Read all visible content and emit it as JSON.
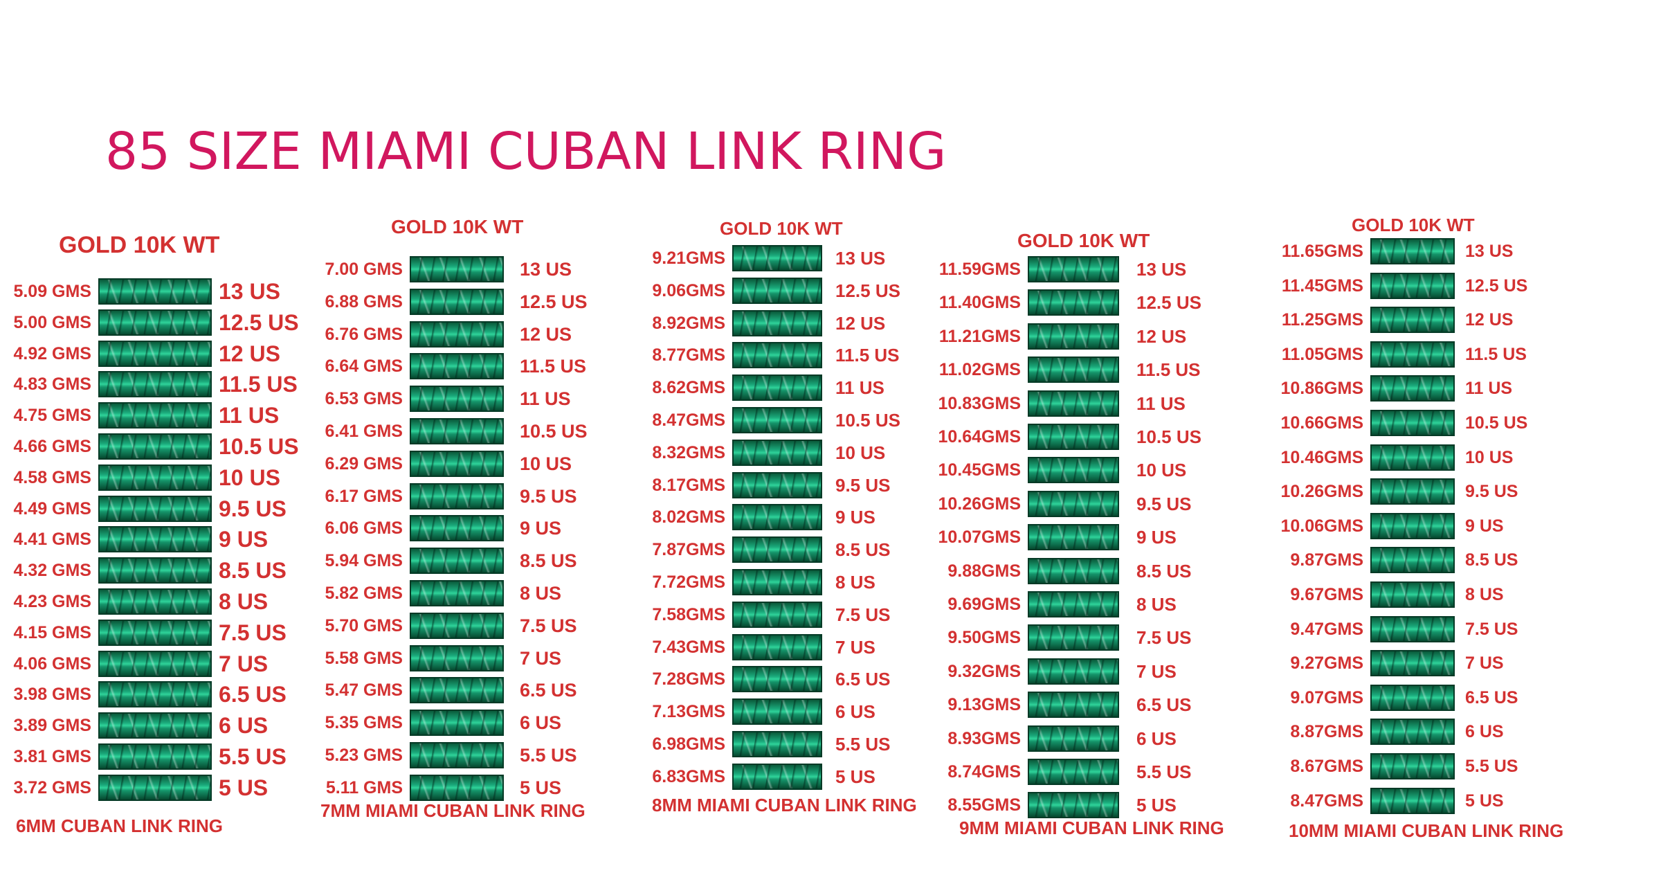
{
  "title": "85 SIZE MIAMI CUBAN LINK RING",
  "colors": {
    "title": "#d1175e",
    "text": "#d33131",
    "ring_green": "#1aa87a"
  },
  "columns": [
    {
      "header": "GOLD 10K WT",
      "footer": "6MM CUBAN LINK RING",
      "rows": [
        {
          "weight": "5.09 GMS",
          "size": "13 US"
        },
        {
          "weight": "5.00 GMS",
          "size": "12.5 US"
        },
        {
          "weight": "4.92 GMS",
          "size": "12 US"
        },
        {
          "weight": "4.83 GMS",
          "size": "11.5 US"
        },
        {
          "weight": "4.75 GMS",
          "size": "11 US"
        },
        {
          "weight": "4.66 GMS",
          "size": "10.5 US"
        },
        {
          "weight": "4.58 GMS",
          "size": "10 US"
        },
        {
          "weight": "4.49 GMS",
          "size": "9.5 US"
        },
        {
          "weight": "4.41 GMS",
          "size": "9 US"
        },
        {
          "weight": "4.32 GMS",
          "size": "8.5 US"
        },
        {
          "weight": "4.23 GMS",
          "size": "8 US"
        },
        {
          "weight": "4.15 GMS",
          "size": "7.5 US"
        },
        {
          "weight": "4.06 GMS",
          "size": "7 US"
        },
        {
          "weight": "3.98 GMS",
          "size": "6.5 US"
        },
        {
          "weight": "3.89 GMS",
          "size": "6 US"
        },
        {
          "weight": "3.81 GMS",
          "size": "5.5 US"
        },
        {
          "weight": "3.72 GMS",
          "size": "5 US"
        }
      ]
    },
    {
      "header": "GOLD 10K WT",
      "footer": "7MM MIAMI CUBAN LINK RING",
      "rows": [
        {
          "weight": "7.00 GMS",
          "size": "13 US"
        },
        {
          "weight": "6.88 GMS",
          "size": "12.5 US"
        },
        {
          "weight": "6.76 GMS",
          "size": "12 US"
        },
        {
          "weight": "6.64 GMS",
          "size": "11.5 US"
        },
        {
          "weight": "6.53 GMS",
          "size": "11 US"
        },
        {
          "weight": "6.41 GMS",
          "size": "10.5 US"
        },
        {
          "weight": "6.29 GMS",
          "size": "10 US"
        },
        {
          "weight": "6.17 GMS",
          "size": "9.5 US"
        },
        {
          "weight": "6.06 GMS",
          "size": "9 US"
        },
        {
          "weight": "5.94 GMS",
          "size": "8.5 US"
        },
        {
          "weight": "5.82 GMS",
          "size": "8 US"
        },
        {
          "weight": "5.70 GMS",
          "size": "7.5 US"
        },
        {
          "weight": "5.58 GMS",
          "size": "7 US"
        },
        {
          "weight": "5.47 GMS",
          "size": "6.5 US"
        },
        {
          "weight": "5.35 GMS",
          "size": "6 US"
        },
        {
          "weight": "5.23 GMS",
          "size": "5.5 US"
        },
        {
          "weight": "5.11 GMS",
          "size": "5 US"
        }
      ]
    },
    {
      "header": "GOLD 10K WT",
      "footer": "8MM MIAMI CUBAN LINK RING",
      "rows": [
        {
          "weight": "9.21GMS",
          "size": "13 US"
        },
        {
          "weight": "9.06GMS",
          "size": "12.5 US"
        },
        {
          "weight": "8.92GMS",
          "size": "12 US"
        },
        {
          "weight": "8.77GMS",
          "size": "11.5 US"
        },
        {
          "weight": "8.62GMS",
          "size": "11 US"
        },
        {
          "weight": "8.47GMS",
          "size": "10.5 US"
        },
        {
          "weight": "8.32GMS",
          "size": "10 US"
        },
        {
          "weight": "8.17GMS",
          "size": "9.5 US"
        },
        {
          "weight": "8.02GMS",
          "size": "9 US"
        },
        {
          "weight": "7.87GMS",
          "size": "8.5 US"
        },
        {
          "weight": "7.72GMS",
          "size": "8 US"
        },
        {
          "weight": "7.58GMS",
          "size": "7.5 US"
        },
        {
          "weight": "7.43GMS",
          "size": "7 US"
        },
        {
          "weight": "7.28GMS",
          "size": "6.5 US"
        },
        {
          "weight": "7.13GMS",
          "size": "6 US"
        },
        {
          "weight": "6.98GMS",
          "size": "5.5 US"
        },
        {
          "weight": "6.83GMS",
          "size": "5 US"
        }
      ]
    },
    {
      "header": "GOLD 10K WT",
      "footer": "9MM MIAMI CUBAN LINK RING",
      "rows": [
        {
          "weight": "11.59GMS",
          "size": "13 US"
        },
        {
          "weight": "11.40GMS",
          "size": "12.5 US"
        },
        {
          "weight": "11.21GMS",
          "size": "12 US"
        },
        {
          "weight": "11.02GMS",
          "size": "11.5 US"
        },
        {
          "weight": "10.83GMS",
          "size": "11 US"
        },
        {
          "weight": "10.64GMS",
          "size": "10.5 US"
        },
        {
          "weight": "10.45GMS",
          "size": "10 US"
        },
        {
          "weight": "10.26GMS",
          "size": "9.5 US"
        },
        {
          "weight": "10.07GMS",
          "size": "9 US"
        },
        {
          "weight": "9.88GMS",
          "size": "8.5 US"
        },
        {
          "weight": "9.69GMS",
          "size": "8 US"
        },
        {
          "weight": "9.50GMS",
          "size": "7.5 US"
        },
        {
          "weight": "9.32GMS",
          "size": "7 US"
        },
        {
          "weight": "9.13GMS",
          "size": "6.5 US"
        },
        {
          "weight": "8.93GMS",
          "size": "6 US"
        },
        {
          "weight": "8.74GMS",
          "size": "5.5 US"
        },
        {
          "weight": "8.55GMS",
          "size": "5 US"
        }
      ]
    },
    {
      "header": "GOLD 10K WT",
      "footer": "10MM MIAMI CUBAN LINK RING",
      "rows": [
        {
          "weight": "11.65GMS",
          "size": "13 US"
        },
        {
          "weight": "11.45GMS",
          "size": "12.5 US"
        },
        {
          "weight": "11.25GMS",
          "size": "12 US"
        },
        {
          "weight": "11.05GMS",
          "size": "11.5 US"
        },
        {
          "weight": "10.86GMS",
          "size": "11 US"
        },
        {
          "weight": "10.66GMS",
          "size": "10.5 US"
        },
        {
          "weight": "10.46GMS",
          "size": "10 US"
        },
        {
          "weight": "10.26GMS",
          "size": "9.5 US"
        },
        {
          "weight": "10.06GMS",
          "size": "9 US"
        },
        {
          "weight": "9.87GMS",
          "size": "8.5 US"
        },
        {
          "weight": "9.67GMS",
          "size": "8 US"
        },
        {
          "weight": "9.47GMS",
          "size": "7.5 US"
        },
        {
          "weight": "9.27GMS",
          "size": "7 US"
        },
        {
          "weight": "9.07GMS",
          "size": "6.5 US"
        },
        {
          "weight": "8.87GMS",
          "size": "6 US"
        },
        {
          "weight": "8.67GMS",
          "size": "5.5 US"
        },
        {
          "weight": "8.47GMS",
          "size": "5 US"
        }
      ]
    }
  ]
}
